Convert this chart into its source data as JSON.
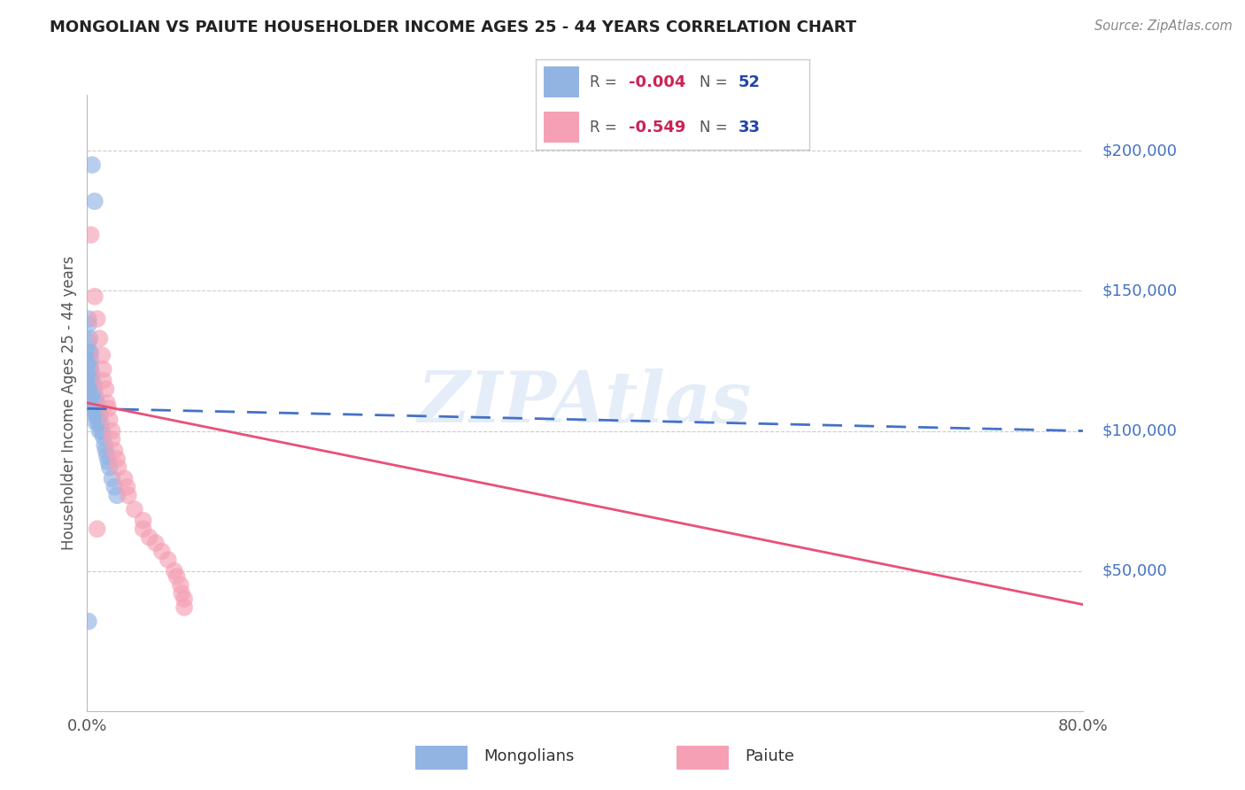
{
  "title": "MONGOLIAN VS PAIUTE HOUSEHOLDER INCOME AGES 25 - 44 YEARS CORRELATION CHART",
  "source": "Source: ZipAtlas.com",
  "ylabel": "Householder Income Ages 25 - 44 years",
  "xlim": [
    0.0,
    0.8
  ],
  "ylim": [
    0,
    220000
  ],
  "mongolian_R": "-0.004",
  "mongolian_N": "52",
  "paiute_R": "-0.549",
  "paiute_N": "33",
  "mongolian_color": "#92b4e3",
  "paiute_color": "#f5a0b5",
  "mongolian_line_color": "#4472c4",
  "paiute_line_color": "#e8507a",
  "background_color": "#ffffff",
  "grid_color": "#cccccc",
  "title_color": "#222222",
  "source_color": "#888888",
  "R_color": "#cc2255",
  "N_color": "#2244aa",
  "mongolians_x": [
    0.004,
    0.006,
    0.001,
    0.001,
    0.001,
    0.001,
    0.001,
    0.002,
    0.002,
    0.002,
    0.002,
    0.002,
    0.002,
    0.002,
    0.003,
    0.003,
    0.003,
    0.003,
    0.003,
    0.003,
    0.003,
    0.004,
    0.004,
    0.004,
    0.004,
    0.005,
    0.005,
    0.005,
    0.006,
    0.006,
    0.006,
    0.007,
    0.007,
    0.007,
    0.008,
    0.008,
    0.009,
    0.009,
    0.01,
    0.01,
    0.011,
    0.012,
    0.013,
    0.014,
    0.015,
    0.016,
    0.017,
    0.018,
    0.02,
    0.022,
    0.024,
    0.001
  ],
  "mongolians_y": [
    195000,
    182000,
    140000,
    138000,
    132000,
    128000,
    125000,
    133000,
    128000,
    123000,
    120000,
    118000,
    116000,
    113000,
    128000,
    125000,
    122000,
    118000,
    115000,
    112000,
    108000,
    120000,
    116000,
    112000,
    108000,
    117000,
    112000,
    108000,
    115000,
    110000,
    106000,
    112000,
    108000,
    103000,
    110000,
    105000,
    108000,
    103000,
    106000,
    100000,
    103000,
    100000,
    98000,
    95000,
    93000,
    91000,
    89000,
    87000,
    83000,
    80000,
    77000,
    32000
  ],
  "paiute_x": [
    0.003,
    0.006,
    0.008,
    0.01,
    0.012,
    0.013,
    0.013,
    0.015,
    0.016,
    0.017,
    0.018,
    0.02,
    0.02,
    0.022,
    0.024,
    0.025,
    0.03,
    0.032,
    0.033,
    0.038,
    0.045,
    0.045,
    0.05,
    0.055,
    0.06,
    0.065,
    0.07,
    0.072,
    0.075,
    0.076,
    0.078,
    0.078,
    0.008
  ],
  "paiute_y": [
    170000,
    148000,
    140000,
    133000,
    127000,
    122000,
    118000,
    115000,
    110000,
    108000,
    104000,
    100000,
    97000,
    93000,
    90000,
    87000,
    83000,
    80000,
    77000,
    72000,
    68000,
    65000,
    62000,
    60000,
    57000,
    54000,
    50000,
    48000,
    45000,
    42000,
    40000,
    37000,
    65000
  ],
  "mongol_trend_x": [
    0.0,
    0.8
  ],
  "mongol_trend_y": [
    108000,
    100000
  ],
  "paiute_trend_x": [
    0.0,
    0.8
  ],
  "paiute_trend_y": [
    110000,
    38000
  ]
}
